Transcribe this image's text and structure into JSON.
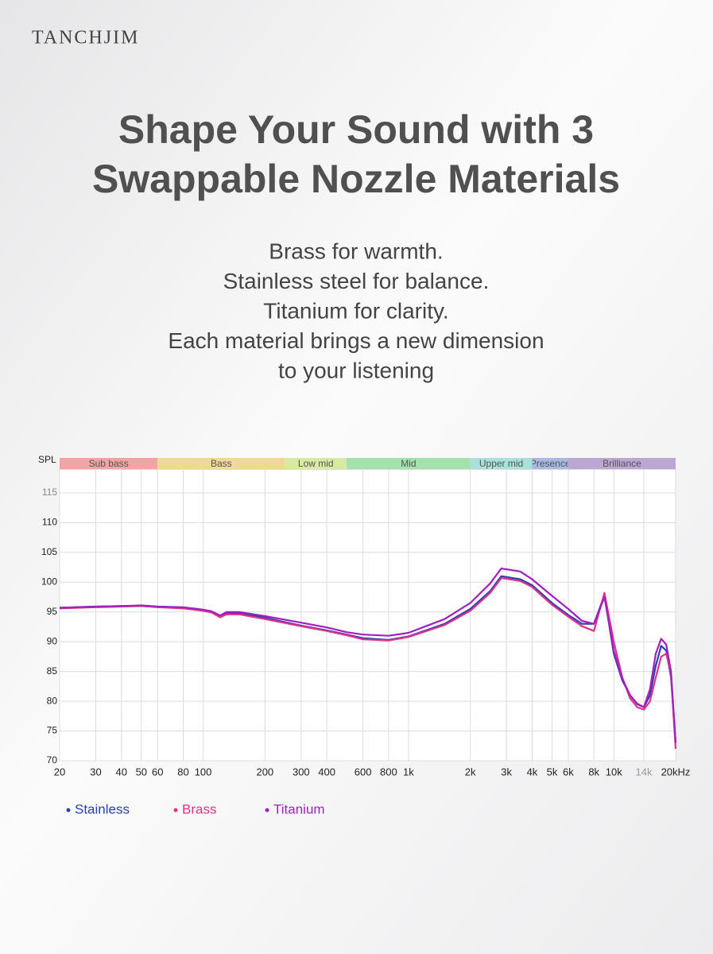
{
  "header": {
    "brand": "TANCHJIM",
    "title_lines": [
      "Shape Your Sound with 3",
      "Swappable Nozzle Materials"
    ],
    "description_lines": [
      "Brass for warmth.",
      "Stainless steel for balance.",
      "Titanium for clarity.",
      "Each material brings a new dimension",
      "to your listening"
    ]
  },
  "chart_data": {
    "type": "line",
    "y_label": "SPL",
    "log_x": true,
    "grid": true,
    "xlim": [
      20,
      20000
    ],
    "ylim": [
      70,
      119
    ],
    "xticks": [
      20,
      30,
      40,
      50,
      60,
      80,
      100,
      200,
      300,
      400,
      600,
      800,
      {
        "value": 1000,
        "label": "1k"
      },
      {
        "value": 2000,
        "label": "2k"
      },
      {
        "value": 3000,
        "label": "3k"
      },
      {
        "value": 4000,
        "label": "4k"
      },
      {
        "value": 5000,
        "label": "5k"
      },
      {
        "value": 6000,
        "label": "6k"
      },
      {
        "value": 8000,
        "label": "8k"
      },
      {
        "value": 10000,
        "label": "10k"
      },
      {
        "value": 14000,
        "label": "14k"
      },
      {
        "value": 20000,
        "label": "20kHz"
      }
    ],
    "yticks": [
      70,
      75,
      80,
      85,
      90,
      95,
      100,
      105,
      110,
      115
    ],
    "bands": [
      {
        "name": "Sub bass",
        "range": [
          20,
          60
        ],
        "color": "#f2a3a3"
      },
      {
        "name": "Bass",
        "range": [
          60,
          250
        ],
        "color": "#f0d995"
      },
      {
        "name": "Low mid",
        "range": [
          250,
          500
        ],
        "color": "#d9e8a2"
      },
      {
        "name": "Mid",
        "range": [
          500,
          2000
        ],
        "color": "#a3e2ab"
      },
      {
        "name": "Upper mid",
        "range": [
          2000,
          4000
        ],
        "color": "#a9e0da"
      },
      {
        "name": "Presence",
        "range": [
          4000,
          6000
        ],
        "color": "#a9b9e2"
      },
      {
        "name": "Brilliance",
        "range": [
          6000,
          20000
        ],
        "color": "#bca6d4"
      }
    ],
    "x": [
      20,
      30,
      40,
      50,
      60,
      80,
      100,
      110,
      121,
      130,
      150,
      200,
      300,
      400,
      500,
      600,
      800,
      1000,
      1500,
      2000,
      2500,
      2830,
      3500,
      4000,
      5000,
      6000,
      7000,
      8000,
      9000,
      10000,
      11000,
      12000,
      13000,
      14000,
      15000,
      16000,
      17000,
      18000,
      19000,
      20000
    ],
    "series": [
      {
        "name": "Stainless",
        "color": "#2b3fb0",
        "values": [
          95.7,
          95.9,
          96,
          96,
          95.9,
          95.7,
          95.3,
          95,
          94.2,
          94.8,
          94.8,
          94,
          92.7,
          91.9,
          91.2,
          90.6,
          90.3,
          90.9,
          93,
          95.5,
          98.5,
          101,
          100.5,
          99.5,
          96.5,
          94.5,
          93,
          93,
          97.8,
          88,
          83.5,
          81,
          79.5,
          79,
          81,
          86,
          89.3,
          88.5,
          84,
          73
        ]
      },
      {
        "name": "Brass",
        "color": "#e0338a",
        "values": [
          95.6,
          95.8,
          95.9,
          96,
          95.8,
          95.6,
          95.2,
          94.9,
          94.1,
          94.6,
          94.6,
          93.8,
          92.6,
          91.8,
          91.1,
          90.4,
          90.2,
          90.8,
          92.8,
          95.2,
          98.2,
          100.7,
          100.2,
          99.2,
          96.2,
          94.2,
          92.6,
          91.8,
          98.2,
          90,
          84,
          80.5,
          79,
          78.6,
          80,
          84,
          87.5,
          88,
          84.5,
          72
        ]
      },
      {
        "name": "Titanium",
        "color": "#a020c0",
        "values": [
          95.7,
          95.9,
          96,
          96.1,
          95.9,
          95.8,
          95.4,
          95.1,
          94.4,
          95,
          95,
          94.3,
          93.2,
          92.4,
          91.6,
          91.2,
          91,
          91.5,
          93.8,
          96.5,
          99.8,
          102.3,
          101.8,
          100.5,
          97.7,
          95.5,
          93.5,
          93,
          97.5,
          88.5,
          83.8,
          81,
          79.6,
          79,
          82,
          88,
          90.5,
          89.5,
          85,
          73
        ]
      }
    ]
  }
}
